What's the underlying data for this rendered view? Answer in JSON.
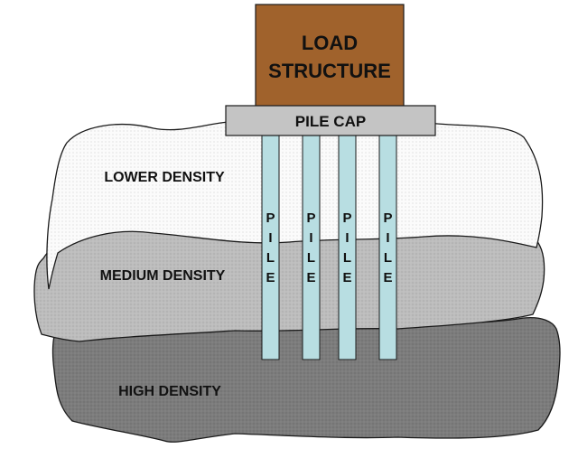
{
  "load_structure": {
    "line1": "LOAD",
    "line2": "STRUCTURE"
  },
  "pile_cap": {
    "label": "PILE CAP"
  },
  "layers": {
    "lower": "LOWER DENSITY",
    "medium": "MEDIUM DENSITY",
    "high": "HIGH DENSITY"
  },
  "pile": {
    "letters": [
      "P",
      "I",
      "L",
      "E"
    ],
    "count": 4
  },
  "colors": {
    "load_structure": "#a0622c",
    "pile_cap": "#c4c4c4",
    "pile": "#b8dee2",
    "lower_layer": "#fbfbfb",
    "medium_layer": "#bdbdbd",
    "high_layer": "#7c7c7c",
    "outline": "#1a1a1a"
  }
}
